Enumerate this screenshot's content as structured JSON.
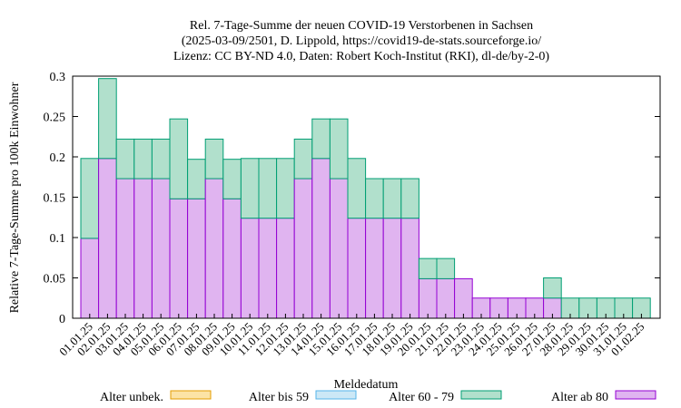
{
  "chart_data": {
    "type": "bar",
    "title_lines": [
      "Rel. 7-Tage-Summe der neuen COVID-19 Verstorbenen in Sachsen",
      "(2025-03-09/2501, D. Lippold, https://covid19-de-stats.sourceforge.io/",
      "Lizenz: CC BY-ND 4.0, Daten: Robert Koch-Institut (RKI), dl-de/by-2-0)"
    ],
    "xlabel": "Meldedatum",
    "ylabel": "Relative 7-Tage-Summe pro 100k Einwohner",
    "ylim": [
      0,
      0.3
    ],
    "yticks": [
      "0",
      "0.05",
      "0.1",
      "0.15",
      "0.2",
      "0.25",
      "0.3"
    ],
    "stacked": true,
    "grid": false,
    "legend_position": "bottom",
    "categories": [
      "01.01.25",
      "02.01.25",
      "03.01.25",
      "04.01.25",
      "05.01.25",
      "06.01.25",
      "07.01.25",
      "08.01.25",
      "09.01.25",
      "10.01.25",
      "11.01.25",
      "12.01.25",
      "13.01.25",
      "14.01.25",
      "15.01.25",
      "16.01.25",
      "17.01.25",
      "18.01.25",
      "19.01.25",
      "20.01.25",
      "21.01.25",
      "22.01.25",
      "23.01.25",
      "24.01.25",
      "25.01.25",
      "26.01.25",
      "27.01.25",
      "28.01.25",
      "29.01.25",
      "30.01.25",
      "31.01.25",
      "01.02.25"
    ],
    "series": [
      {
        "name": "Alter unbek.",
        "fill": "#fce3a6",
        "stroke": "#e59e00",
        "values": [
          0,
          0,
          0,
          0,
          0,
          0,
          0,
          0,
          0,
          0,
          0,
          0,
          0,
          0,
          0,
          0,
          0,
          0,
          0,
          0,
          0,
          0,
          0,
          0,
          0,
          0,
          0,
          0,
          0,
          0,
          0,
          0
        ]
      },
      {
        "name": "Alter bis 59",
        "fill": "#cce8f6",
        "stroke": "#56b4e9",
        "values": [
          0,
          0,
          0,
          0,
          0,
          0,
          0,
          0,
          0,
          0,
          0,
          0,
          0,
          0,
          0,
          0,
          0,
          0,
          0,
          0,
          0,
          0,
          0,
          0,
          0,
          0,
          0,
          0,
          0,
          0,
          0,
          0
        ]
      },
      {
        "name": "Alter 60 - 79",
        "fill": "#b1e0cc",
        "stroke": "#009e73",
        "values": [
          0.099,
          0.099,
          0.049,
          0.049,
          0.049,
          0.099,
          0.049,
          0.049,
          0.049,
          0.074,
          0.074,
          0.074,
          0.049,
          0.049,
          0.074,
          0.074,
          0.049,
          0.049,
          0.049,
          0.025,
          0.025,
          0,
          0,
          0,
          0,
          0,
          0.025,
          0.025,
          0.025,
          0.025,
          0.025,
          0.025
        ]
      },
      {
        "name": "Alter ab 80",
        "fill": "#e0b4f0",
        "stroke": "#9400d3",
        "values": [
          0.099,
          0.198,
          0.173,
          0.173,
          0.173,
          0.148,
          0.148,
          0.173,
          0.148,
          0.124,
          0.124,
          0.124,
          0.173,
          0.198,
          0.173,
          0.124,
          0.124,
          0.124,
          0.124,
          0.049,
          0.049,
          0.049,
          0.025,
          0.025,
          0.025,
          0.025,
          0.025,
          0,
          0,
          0,
          0,
          0
        ]
      }
    ]
  }
}
